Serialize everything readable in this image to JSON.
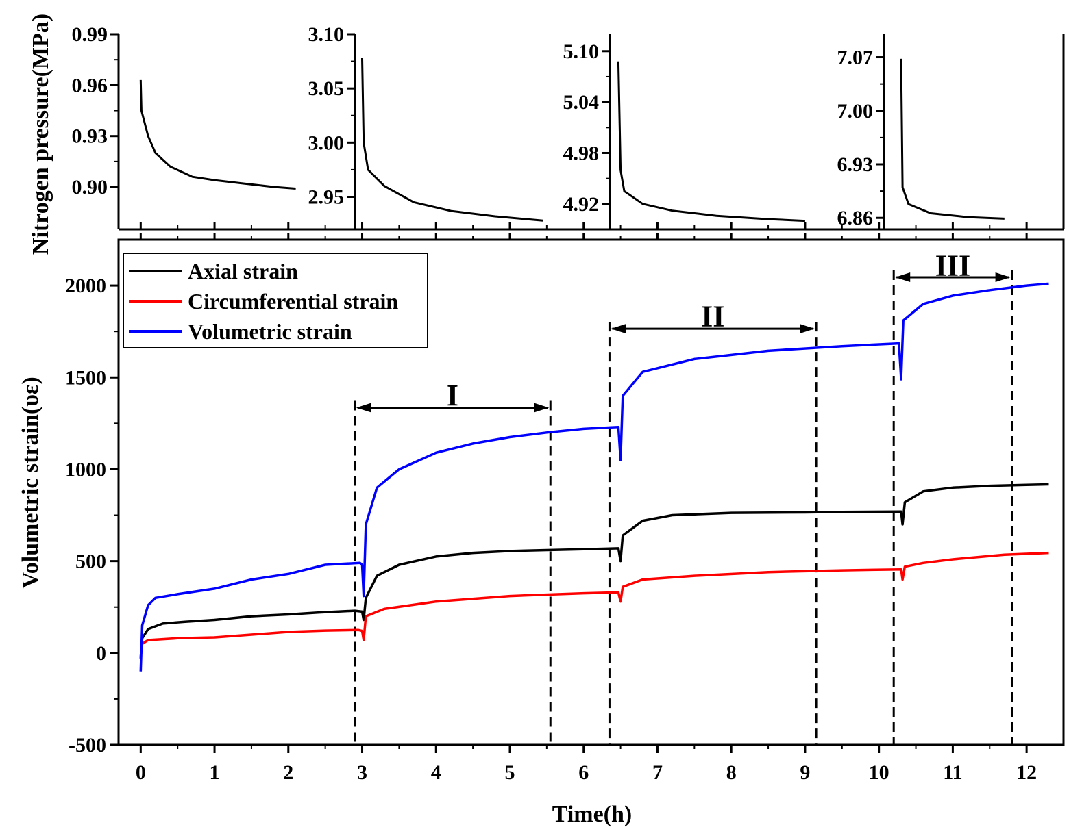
{
  "chart_data": [
    {
      "type": "line",
      "title": "",
      "xlabel": "Time(h)",
      "ylabel": "Volumetric strain(υε)",
      "xlim": [
        -0.3,
        12.5
      ],
      "ylim": [
        -500,
        2250
      ],
      "x_ticks": [
        "0",
        "1",
        "2",
        "3",
        "4",
        "5",
        "6",
        "7",
        "8",
        "9",
        "10",
        "11",
        "12"
      ],
      "y_ticks": [
        "-500",
        "0",
        "500",
        "1000",
        "1500",
        "2000"
      ],
      "legend": {
        "placement": "top-left",
        "entries": [
          "Axial strain",
          "Circumferential strain",
          "Volumetric strain"
        ]
      },
      "grid": false,
      "series": [
        {
          "name": "Axial strain",
          "color": "#000000",
          "points": [
            [
              0,
              -30
            ],
            [
              0.02,
              80
            ],
            [
              0.1,
              130
            ],
            [
              0.3,
              160
            ],
            [
              0.6,
              170
            ],
            [
              1.0,
              180
            ],
            [
              1.5,
              200
            ],
            [
              2.0,
              210
            ],
            [
              2.4,
              220
            ],
            [
              2.9,
              230
            ],
            [
              3.0,
              225
            ],
            [
              3.02,
              180
            ],
            [
              3.05,
              300
            ],
            [
              3.2,
              420
            ],
            [
              3.5,
              480
            ],
            [
              4.0,
              525
            ],
            [
              4.5,
              545
            ],
            [
              5.0,
              555
            ],
            [
              5.5,
              560
            ],
            [
              6.0,
              565
            ],
            [
              6.47,
              570
            ],
            [
              6.5,
              500
            ],
            [
              6.53,
              640
            ],
            [
              6.8,
              720
            ],
            [
              7.2,
              750
            ],
            [
              8.0,
              763
            ],
            [
              9.0,
              765
            ],
            [
              9.5,
              768
            ],
            [
              10.3,
              770
            ],
            [
              10.32,
              700
            ],
            [
              10.35,
              820
            ],
            [
              10.6,
              880
            ],
            [
              11.0,
              900
            ],
            [
              11.5,
              910
            ],
            [
              12.0,
              915
            ],
            [
              12.3,
              918
            ]
          ]
        },
        {
          "name": "Circumferential strain",
          "color": "#ff0000",
          "points": [
            [
              0,
              -20
            ],
            [
              0.02,
              50
            ],
            [
              0.1,
              70
            ],
            [
              0.5,
              80
            ],
            [
              1.0,
              85
            ],
            [
              1.5,
              100
            ],
            [
              2.0,
              115
            ],
            [
              2.5,
              122
            ],
            [
              2.95,
              125
            ],
            [
              3.0,
              120
            ],
            [
              3.02,
              70
            ],
            [
              3.05,
              200
            ],
            [
              3.3,
              240
            ],
            [
              4.0,
              280
            ],
            [
              5.0,
              310
            ],
            [
              6.0,
              325
            ],
            [
              6.47,
              330
            ],
            [
              6.5,
              280
            ],
            [
              6.53,
              360
            ],
            [
              6.8,
              400
            ],
            [
              7.5,
              420
            ],
            [
              8.5,
              440
            ],
            [
              9.5,
              450
            ],
            [
              10.3,
              455
            ],
            [
              10.32,
              400
            ],
            [
              10.35,
              470
            ],
            [
              10.6,
              490
            ],
            [
              11.0,
              510
            ],
            [
              11.7,
              535
            ],
            [
              12.3,
              545
            ]
          ]
        },
        {
          "name": "Volumetric strain",
          "color": "#0000ff",
          "points": [
            [
              0,
              -100
            ],
            [
              0.02,
              150
            ],
            [
              0.1,
              260
            ],
            [
              0.2,
              300
            ],
            [
              0.5,
              320
            ],
            [
              1.0,
              350
            ],
            [
              1.5,
              400
            ],
            [
              2.0,
              430
            ],
            [
              2.5,
              480
            ],
            [
              2.97,
              490
            ],
            [
              3.0,
              480
            ],
            [
              3.02,
              310
            ],
            [
              3.05,
              700
            ],
            [
              3.2,
              900
            ],
            [
              3.5,
              1000
            ],
            [
              4.0,
              1090
            ],
            [
              4.5,
              1140
            ],
            [
              5.0,
              1175
            ],
            [
              5.5,
              1200
            ],
            [
              6.0,
              1220
            ],
            [
              6.47,
              1230
            ],
            [
              6.5,
              1050
            ],
            [
              6.53,
              1400
            ],
            [
              6.8,
              1530
            ],
            [
              7.5,
              1600
            ],
            [
              8.5,
              1645
            ],
            [
              9.5,
              1670
            ],
            [
              10.27,
              1685
            ],
            [
              10.3,
              1490
            ],
            [
              10.33,
              1810
            ],
            [
              10.6,
              1900
            ],
            [
              11.0,
              1945
            ],
            [
              11.5,
              1975
            ],
            [
              12.0,
              2000
            ],
            [
              12.3,
              2010
            ]
          ]
        }
      ],
      "stages": [
        {
          "label": "I",
          "start": 2.9,
          "end": 5.55,
          "arrow_y": 1335,
          "label_y": 1405
        },
        {
          "label": "II",
          "start": 6.35,
          "end": 9.15,
          "arrow_y": 1765,
          "label_y": 1835
        },
        {
          "label": "III",
          "start": 10.2,
          "end": 11.8,
          "arrow_y": 2045,
          "label_y": 2110
        }
      ]
    },
    {
      "type": "line",
      "title": "",
      "ylabel": "Nitrogen pressure(MPa)",
      "series": [
        {
          "name": "",
          "color": "#000000",
          "points": [
            [
              0,
              0.963
            ],
            [
              0.01,
              0.945
            ],
            [
              0.1,
              0.93
            ],
            [
              0.2,
              0.92
            ],
            [
              0.4,
              0.912
            ],
            [
              0.7,
              0.906
            ],
            [
              1.0,
              0.904
            ],
            [
              1.4,
              0.902
            ],
            [
              1.8,
              0.9
            ],
            [
              2.1,
              0.899
            ]
          ]
        }
      ],
      "xlim": [
        -0.3,
        2.2
      ],
      "ylim": [
        0.875,
        0.99
      ],
      "y_ticks": [
        "0.90",
        "0.93",
        "0.96",
        "0.99"
      ]
    },
    {
      "type": "line",
      "title": "",
      "series": [
        {
          "name": "",
          "color": "#000000",
          "points": [
            [
              3.0,
              3.078
            ],
            [
              3.02,
              3.0
            ],
            [
              3.08,
              2.975
            ],
            [
              3.3,
              2.96
            ],
            [
              3.7,
              2.945
            ],
            [
              4.2,
              2.937
            ],
            [
              4.8,
              2.932
            ],
            [
              5.45,
              2.928
            ]
          ]
        }
      ],
      "xlim": [
        2.9,
        5.6
      ],
      "ylim": [
        2.92,
        3.1
      ],
      "y_ticks": [
        "2.95",
        "3.00",
        "3.05",
        "3.10"
      ]
    },
    {
      "type": "line",
      "title": "",
      "series": [
        {
          "name": "",
          "color": "#000000",
          "points": [
            [
              6.47,
              5.088
            ],
            [
              6.5,
              4.96
            ],
            [
              6.55,
              4.935
            ],
            [
              6.8,
              4.92
            ],
            [
              7.2,
              4.912
            ],
            [
              7.8,
              4.906
            ],
            [
              8.5,
              4.902
            ],
            [
              9.0,
              4.9
            ]
          ]
        }
      ],
      "xlim": [
        6.35,
        9.15
      ],
      "ylim": [
        4.89,
        5.12
      ],
      "y_ticks": [
        "4.92",
        "4.98",
        "5.04",
        "5.10"
      ]
    },
    {
      "type": "line",
      "title": "",
      "series": [
        {
          "name": "",
          "color": "#000000",
          "points": [
            [
              10.3,
              7.068
            ],
            [
              10.32,
              6.9
            ],
            [
              10.4,
              6.878
            ],
            [
              10.7,
              6.866
            ],
            [
              11.2,
              6.861
            ],
            [
              11.7,
              6.859
            ]
          ]
        }
      ],
      "xlim": [
        10.2,
        12.5
      ],
      "ylim": [
        6.845,
        7.1
      ],
      "y_ticks": [
        "6.86",
        "6.93",
        "7.00",
        "7.07"
      ]
    }
  ]
}
